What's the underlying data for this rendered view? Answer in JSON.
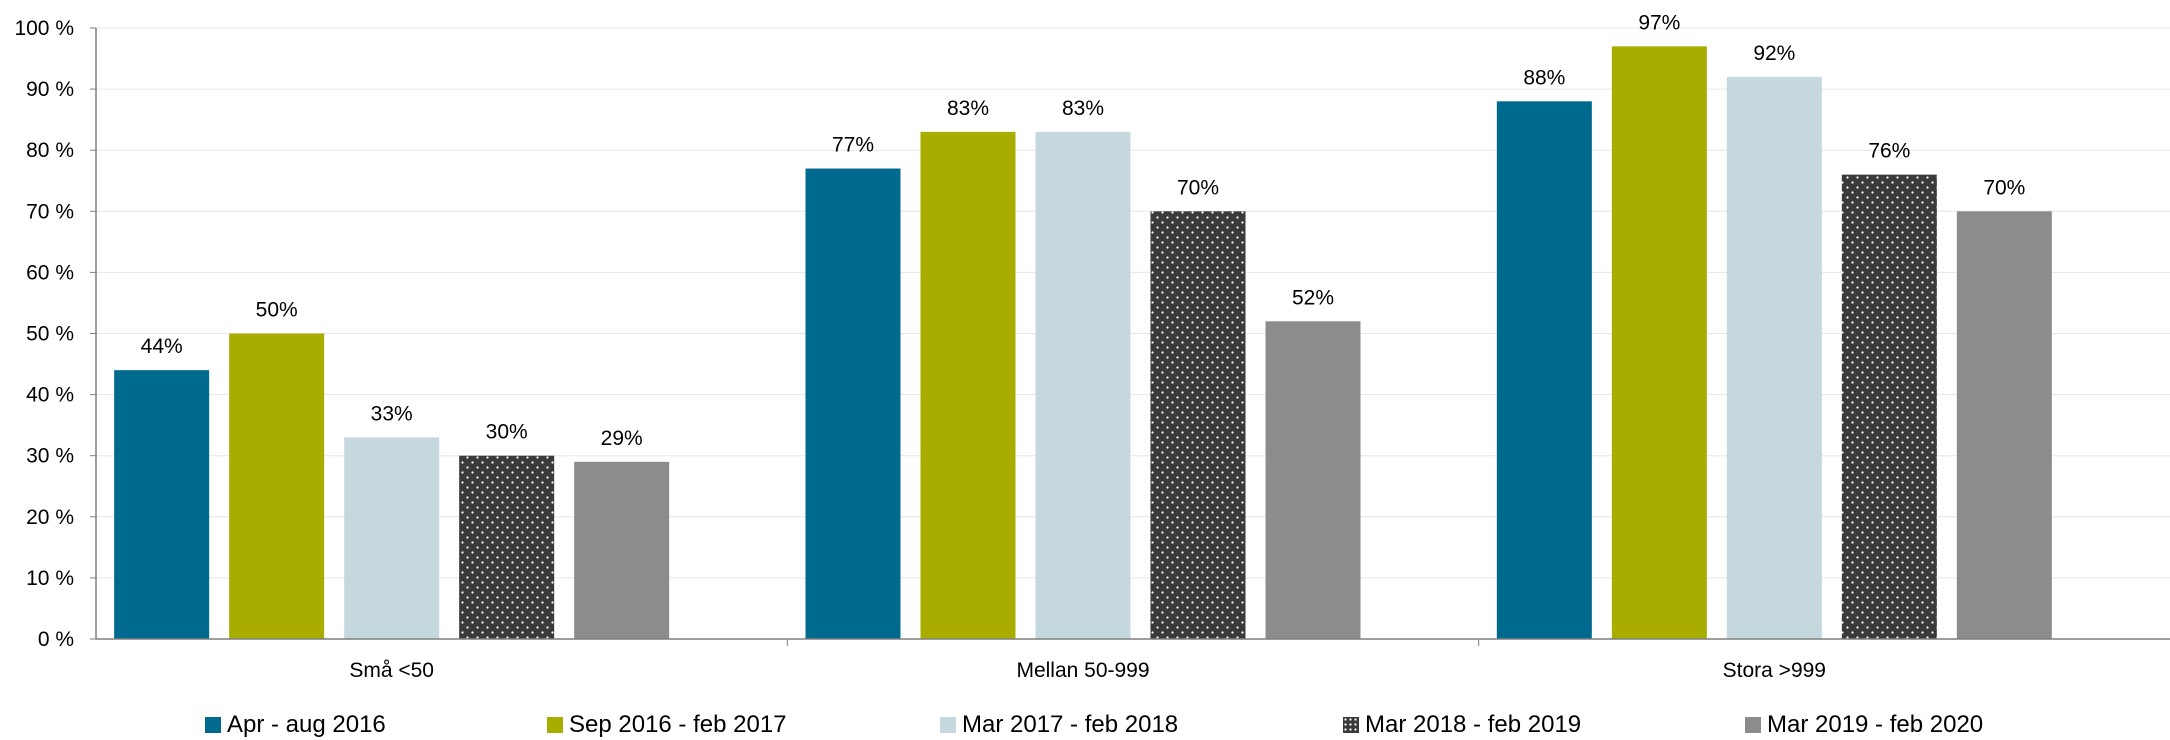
{
  "chart_data": {
    "type": "bar",
    "title": "",
    "xlabel": "",
    "ylabel": "",
    "ylim": [
      0,
      100
    ],
    "yticks": [
      0,
      10,
      20,
      30,
      40,
      50,
      60,
      70,
      80,
      90,
      100
    ],
    "ytick_labels": [
      "0 %",
      "10 %",
      "20 %",
      "30 %",
      "40 %",
      "50 %",
      "60 %",
      "70 %",
      "80 %",
      "90 %",
      "100 %"
    ],
    "grid": true,
    "legend_position": "bottom",
    "categories": [
      "Små <50",
      "Mellan 50-999",
      "Stora >999"
    ],
    "series": [
      {
        "name": "Apr - aug 2016",
        "values": [
          44,
          77,
          88
        ],
        "labels": [
          "44%",
          "77%",
          "88%"
        ],
        "color": "#006a8e",
        "pattern": "solid"
      },
      {
        "name": "Sep 2016 - feb 2017",
        "values": [
          50,
          83,
          97
        ],
        "labels": [
          "50%",
          "83%",
          "97%"
        ],
        "color": "#a8ad00",
        "pattern": "solid"
      },
      {
        "name": "Mar 2017 - feb 2018",
        "values": [
          33,
          83,
          92
        ],
        "labels": [
          "33%",
          "83%",
          "92%"
        ],
        "color": "#c4d8de",
        "pattern": "solid"
      },
      {
        "name": "Mar 2018 - feb 2019",
        "values": [
          30,
          70,
          76
        ],
        "labels": [
          "30%",
          "70%",
          "76%"
        ],
        "color": "#3a3a3a",
        "pattern": "dots"
      },
      {
        "name": "Mar 2019 - feb 2020",
        "values": [
          29,
          52,
          70
        ],
        "labels": [
          "29%",
          "52%",
          "70%"
        ],
        "color": "#8c8c8c",
        "pattern": "solid"
      }
    ]
  }
}
